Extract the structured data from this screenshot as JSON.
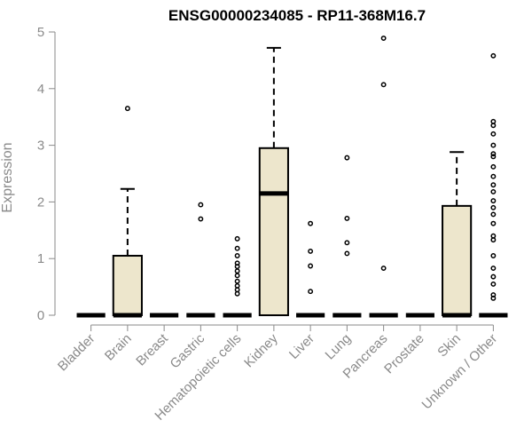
{
  "chart_data": {
    "type": "box",
    "title": "ENSG00000234085 - RP11-368M16.7",
    "xlabel": "",
    "ylabel": "Expression",
    "ylim": [
      0,
      5
    ],
    "yticks": [
      0,
      1,
      2,
      3,
      4,
      5
    ],
    "box_fill": "#ede6cc",
    "categories": [
      "Bladder",
      "Brain",
      "Breast",
      "Gastric",
      "Hematopoietic cells",
      "Kidney",
      "Liver",
      "Lung",
      "Pancreas",
      "Prostate",
      "Skin",
      "Unknown / Other"
    ],
    "boxes": [
      {
        "q1": 0,
        "median": 0,
        "q3": 0,
        "whisker_low": 0,
        "whisker_high": 0,
        "outliers": []
      },
      {
        "q1": 0,
        "median": 0,
        "q3": 1.05,
        "whisker_low": 0,
        "whisker_high": 2.23,
        "outliers": [
          3.65
        ]
      },
      {
        "q1": 0,
        "median": 0,
        "q3": 0,
        "whisker_low": 0,
        "whisker_high": 0,
        "outliers": []
      },
      {
        "q1": 0,
        "median": 0,
        "q3": 0,
        "whisker_low": 0,
        "whisker_high": 0,
        "outliers": [
          1.7,
          1.95
        ]
      },
      {
        "q1": 0,
        "median": 0,
        "q3": 0,
        "whisker_low": 0,
        "whisker_high": 0,
        "outliers": [
          0.38,
          0.45,
          0.52,
          0.6,
          0.7,
          0.78,
          0.86,
          0.92,
          1.05,
          1.18,
          1.35
        ]
      },
      {
        "q1": 0,
        "median": 2.15,
        "q3": 2.95,
        "whisker_low": 0,
        "whisker_high": 4.72,
        "outliers": []
      },
      {
        "q1": 0,
        "median": 0,
        "q3": 0,
        "whisker_low": 0,
        "whisker_high": 0,
        "outliers": [
          0.42,
          0.87,
          1.13,
          1.62
        ]
      },
      {
        "q1": 0,
        "median": 0,
        "q3": 0,
        "whisker_low": 0,
        "whisker_high": 0,
        "outliers": [
          1.09,
          1.28,
          1.71,
          2.78
        ]
      },
      {
        "q1": 0,
        "median": 0,
        "q3": 0,
        "whisker_low": 0,
        "whisker_high": 0,
        "outliers": [
          0.83,
          4.07,
          4.89
        ]
      },
      {
        "q1": 0,
        "median": 0,
        "q3": 0,
        "whisker_low": 0,
        "whisker_high": 0,
        "outliers": []
      },
      {
        "q1": 0,
        "median": 0,
        "q3": 1.93,
        "whisker_low": 0,
        "whisker_high": 2.88,
        "outliers": []
      },
      {
        "q1": 0,
        "median": 0,
        "q3": 0,
        "whisker_low": 0,
        "whisker_high": 0,
        "outliers": [
          0.3,
          0.36,
          0.55,
          0.68,
          0.83,
          1.05,
          1.33,
          1.4,
          1.62,
          1.78,
          1.9,
          2.02,
          2.18,
          2.3,
          2.45,
          2.62,
          2.8,
          2.85,
          3.0,
          3.2,
          3.35,
          3.42,
          4.58
        ]
      }
    ]
  }
}
